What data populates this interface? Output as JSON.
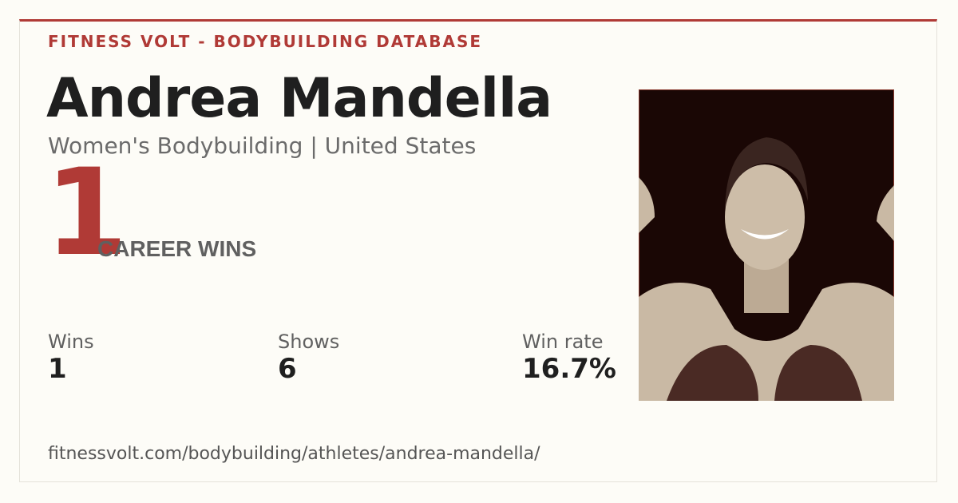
{
  "header": {
    "site": "FITNESS VOLT - BODYBUILDING DATABASE"
  },
  "athlete": {
    "name": "Andrea Mandella",
    "subtitle": "Women's Bodybuilding | United States"
  },
  "highlight": {
    "number": "1",
    "label": "CAREER WINS"
  },
  "stats": [
    {
      "label": "Wins",
      "value": "1"
    },
    {
      "label": "Shows",
      "value": "6"
    },
    {
      "label": "Win rate",
      "value": "16.7%"
    }
  ],
  "footer": {
    "url": "fitnessvolt.com/bodybuilding/athletes/andrea-mandella/"
  }
}
